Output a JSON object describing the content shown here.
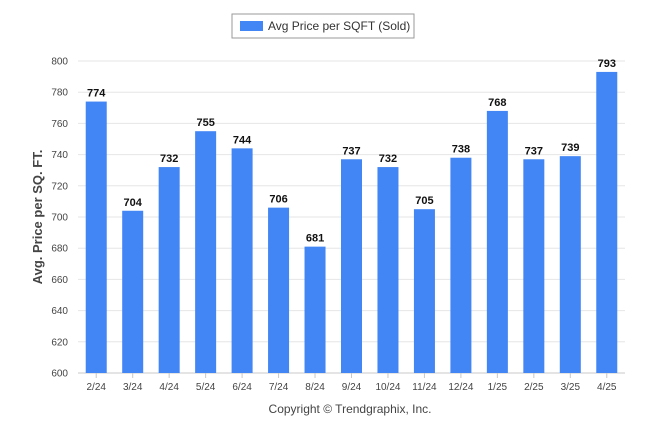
{
  "chart_data": {
    "type": "bar",
    "categories": [
      "2/24",
      "3/24",
      "4/24",
      "5/24",
      "6/24",
      "7/24",
      "8/24",
      "9/24",
      "10/24",
      "11/24",
      "12/24",
      "1/25",
      "2/25",
      "3/25",
      "4/25"
    ],
    "series": [
      {
        "name": "Avg Price per SQFT (Sold)",
        "values": [
          774,
          704,
          732,
          755,
          744,
          706,
          681,
          737,
          732,
          705,
          738,
          768,
          737,
          739,
          793
        ]
      }
    ],
    "ylabel": "Avg. Price per SQ. FT.",
    "ylim": [
      600,
      800
    ],
    "yticks": [
      600,
      620,
      640,
      660,
      680,
      700,
      720,
      740,
      760,
      780,
      800
    ],
    "grid": true,
    "legend_position": "top-center",
    "bar_color": "#4285f4"
  },
  "footer": "Copyright © Trendgraphix, Inc."
}
